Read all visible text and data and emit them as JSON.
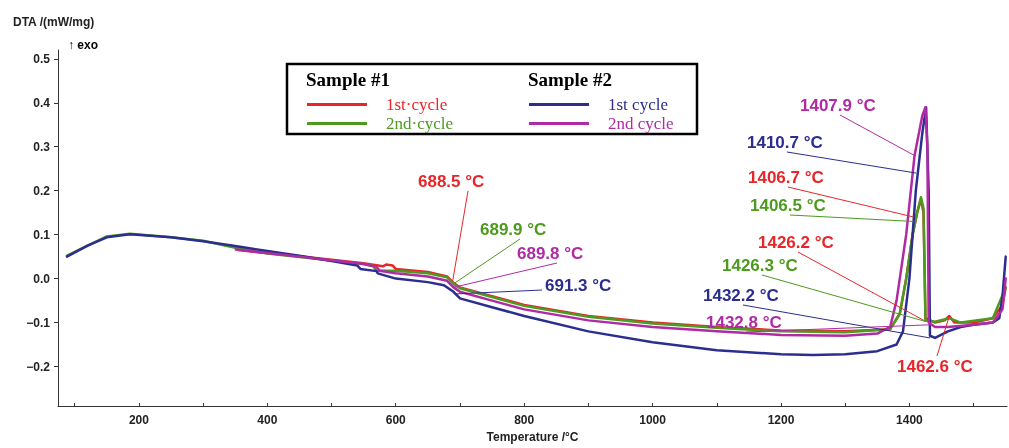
{
  "chart_data": {
    "type": "line",
    "xlabel": "Temperature /°C",
    "ylabel": "DTA /(mW/mg)",
    "xlim": [
      74,
      1552
    ],
    "xticks": [
      {
        "value": 100,
        "label": null
      },
      200,
      {
        "value": 300,
        "label": null
      },
      400,
      {
        "value": 500,
        "label": null
      },
      600,
      {
        "value": 700,
        "label": null
      },
      800,
      {
        "value": 900,
        "label": null
      },
      1000,
      {
        "value": 1100,
        "label": null
      },
      1200,
      {
        "value": 1300,
        "label": null
      },
      1400,
      {
        "value": 1500,
        "label": null
      }
    ],
    "ylim": [
      -0.29,
      0.52
    ],
    "yticks": [
      {
        "value": -0.2,
        "label": "−0.2"
      },
      {
        "value": -0.1,
        "label": "−0.1"
      },
      {
        "value": 0,
        "label": "0.0"
      },
      0.1,
      0.2,
      0.3,
      0.4,
      0.5
    ],
    "grid": false,
    "legend": "top",
    "marker": "none",
    "line_style": "solid",
    "series": [
      {
        "name": "1st·cycle",
        "color": "#e8262a",
        "x": [
          355,
          400,
          450,
          500,
          550,
          580,
          585,
          595,
          600,
          650,
          680,
          690,
          700,
          750,
          800,
          900,
          1000,
          1100,
          1200,
          1300,
          1370,
          1385,
          1395,
          1405,
          1412,
          1418,
          1422,
          1425,
          1440,
          1455,
          1462,
          1470,
          1500,
          1530,
          1545,
          1550
        ],
        "values": [
          0.065,
          0.058,
          0.051,
          0.043,
          0.035,
          0.028,
          0.032,
          0.03,
          0.022,
          0.015,
          0.005,
          -0.01,
          -0.02,
          -0.04,
          -0.06,
          -0.085,
          -0.1,
          -0.11,
          -0.118,
          -0.12,
          -0.115,
          -0.08,
          0.0,
          0.1,
          0.15,
          0.18,
          0.15,
          -0.09,
          -0.1,
          -0.095,
          -0.085,
          -0.1,
          -0.1,
          -0.09,
          -0.06,
          -0.02
        ]
      },
      {
        "name": "2nd·cycle",
        "color": "#4c9a1e",
        "x": [
          88,
          150,
          186,
          250,
          300,
          350,
          400,
          450,
          500,
          550,
          565,
          570,
          600,
          650,
          680,
          690,
          700,
          750,
          800,
          900,
          1000,
          1100,
          1200,
          1300,
          1370,
          1385,
          1395,
          1405,
          1412,
          1418,
          1422,
          1425,
          1440,
          1462,
          1480,
          1530,
          1550
        ],
        "values": [
          0.052,
          0.096,
          0.102,
          0.094,
          0.086,
          0.07,
          0.057,
          0.049,
          0.041,
          0.033,
          0.028,
          0.018,
          0.018,
          0.012,
          0.003,
          -0.012,
          -0.022,
          -0.042,
          -0.062,
          -0.087,
          -0.102,
          -0.112,
          -0.12,
          -0.122,
          -0.115,
          -0.08,
          0.0,
          0.1,
          0.15,
          0.185,
          0.16,
          -0.095,
          -0.098,
          -0.09,
          -0.1,
          -0.09,
          -0.02
        ]
      },
      {
        "name": "1st cycle",
        "color": "#2b2e8f",
        "x": [
          88,
          120,
          150,
          186,
          250,
          300,
          350,
          400,
          450,
          500,
          540,
          545,
          570,
          572,
          600,
          650,
          675,
          690,
          700,
          750,
          800,
          900,
          1000,
          1100,
          1200,
          1250,
          1300,
          1350,
          1380,
          1390,
          1400,
          1410,
          1420,
          1426,
          1430,
          1432,
          1440,
          1460,
          1480,
          1500,
          1530,
          1540,
          1545,
          1550
        ],
        "values": [
          0.05,
          0.075,
          0.094,
          0.101,
          0.094,
          0.085,
          0.074,
          0.063,
          0.052,
          0.04,
          0.03,
          0.022,
          0.017,
          0.012,
          0.0,
          -0.008,
          -0.015,
          -0.03,
          -0.045,
          -0.065,
          -0.085,
          -0.12,
          -0.145,
          -0.163,
          -0.172,
          -0.174,
          -0.172,
          -0.165,
          -0.15,
          -0.12,
          0.0,
          0.2,
          0.33,
          0.39,
          0.2,
          -0.13,
          -0.135,
          -0.12,
          -0.11,
          -0.105,
          -0.1,
          -0.09,
          -0.04,
          0.05
        ]
      },
      {
        "name": "2nd cycle",
        "color": "#b02aa5",
        "x": [
          351,
          400,
          450,
          500,
          550,
          570,
          575,
          600,
          650,
          680,
          690,
          700,
          750,
          800,
          900,
          1000,
          1100,
          1200,
          1300,
          1350,
          1370,
          1380,
          1395,
          1408,
          1420,
          1425,
          1428,
          1430,
          1440,
          1460,
          1500,
          1530,
          1545,
          1550
        ],
        "values": [
          0.066,
          0.058,
          0.05,
          0.042,
          0.033,
          0.027,
          0.018,
          0.012,
          0.005,
          -0.005,
          -0.02,
          -0.03,
          -0.05,
          -0.07,
          -0.095,
          -0.11,
          -0.12,
          -0.128,
          -0.13,
          -0.125,
          -0.11,
          -0.05,
          0.1,
          0.28,
          0.37,
          0.39,
          0.3,
          -0.1,
          -0.11,
          -0.11,
          -0.105,
          -0.1,
          -0.07,
          0.0
        ]
      }
    ],
    "annotations": [
      "↑ exo",
      "Sample #1",
      "Sample #2",
      {
        "text": "688.5 °C",
        "x": 688.5,
        "y": -0.007
      },
      {
        "text": "689.9 °C",
        "x": 689.9,
        "y": -0.012
      },
      {
        "text": "689.8 °C",
        "x": 689.8,
        "y": -0.02
      },
      {
        "text": "691.3 °C",
        "x": 691.3,
        "y": -0.035
      },
      {
        "text": "1407.9 °C",
        "x": 1407.9,
        "y": 0.28
      },
      {
        "text": "1410.7 °C",
        "x": 1410.7,
        "y": 0.24
      },
      {
        "text": "1406.7 °C",
        "x": 1406.7,
        "y": 0.14
      },
      {
        "text": "1406.5 °C",
        "x": 1406.5,
        "y": 0.13
      },
      {
        "text": "1426.2 °C",
        "x": 1426.2,
        "y": -0.098
      },
      {
        "text": "1426.3 °C",
        "x": 1426.3,
        "y": -0.098
      },
      {
        "text": "1432.2 °C",
        "x": 1432.2,
        "y": -0.135
      },
      {
        "text": "1432.8 °C",
        "x": 1432.8,
        "y": -0.105
      },
      {
        "text": "1462.6 °C",
        "x": 1462.6,
        "y": -0.083
      }
    ]
  }
}
